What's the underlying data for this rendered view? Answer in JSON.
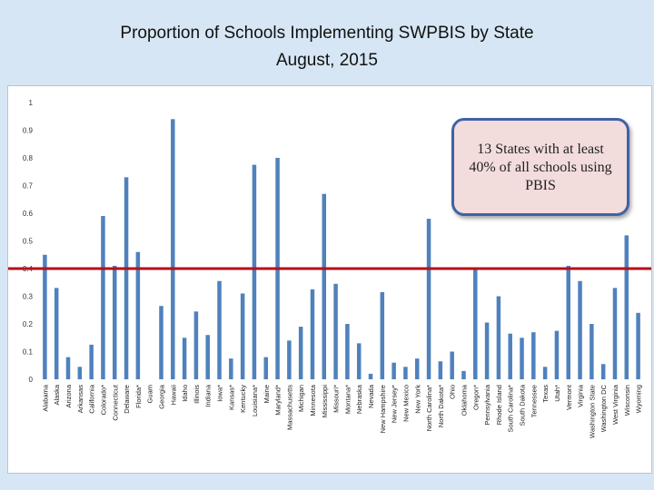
{
  "title_line1": "Proportion of Schools Implementing SWPBIS by State",
  "title_line2": "August, 2015",
  "callout_text": "13 States with at least 40% of all schools using PBIS",
  "colors": {
    "bar": "#4f81bd",
    "threshold": "#b2121a",
    "background": "#d6e6f4"
  },
  "chart_data": {
    "type": "bar",
    "title": "Proportion of Schools Implementing SWPBIS by State August, 2015",
    "xlabel": "",
    "ylabel": "",
    "ylim": [
      0,
      1
    ],
    "yticks": [
      "0",
      "0.1",
      "0.2",
      "0.3",
      "0.4",
      "0.5",
      "0.6",
      "0.7",
      "0.8",
      "0.9",
      "1"
    ],
    "threshold": 0.4,
    "grid": false,
    "categories": [
      "Alabama",
      "Alaska",
      "Arizona",
      "Arkansas",
      "California",
      "Colorado*",
      "Connecticut",
      "Delaware",
      "Florida*",
      "Guam",
      "Georgia",
      "Hawaii",
      "Idaho",
      "Illinois",
      "Indiana",
      "Iowa*",
      "Kansas*",
      "Kentucky",
      "Louisiana*",
      "Maine",
      "Maryland*",
      "Massachusetts",
      "Michigan",
      "Minnesota",
      "Mississippi",
      "Missouri*",
      "Montana*",
      "Nebraska",
      "Nevada",
      "New Hampshire",
      "New Jersey*",
      "New Mexico",
      "New York",
      "North Carolina*",
      "North Dakota*",
      "Ohio",
      "Oklahoma",
      "Oregon*",
      "Pennsylvania",
      "Rhode Island",
      "South Carolina*",
      "South Dakota",
      "Tennessee",
      "Texas",
      "Utah*",
      "Vermont",
      "Virginia",
      "Washington State",
      "Washington DC",
      "West Virginia",
      "Wisconsin",
      "Wyoming"
    ],
    "values": [
      0.45,
      0.33,
      0.08,
      0.045,
      0.125,
      0.59,
      0.41,
      0.73,
      0.46,
      0,
      0.265,
      0.94,
      0.15,
      0.245,
      0.16,
      0.355,
      0.075,
      0.31,
      0.775,
      0.08,
      0.8,
      0.14,
      0.19,
      0.325,
      0.67,
      0.345,
      0.2,
      0.13,
      0.02,
      0.315,
      0.06,
      0.045,
      0.075,
      0.58,
      0.065,
      0.1,
      0.03,
      0.4,
      0.205,
      0.3,
      0.165,
      0.15,
      0.17,
      0.045,
      0.175,
      0.41,
      0.355,
      0.2,
      0.055,
      0.33,
      0.52,
      0.24
    ]
  }
}
